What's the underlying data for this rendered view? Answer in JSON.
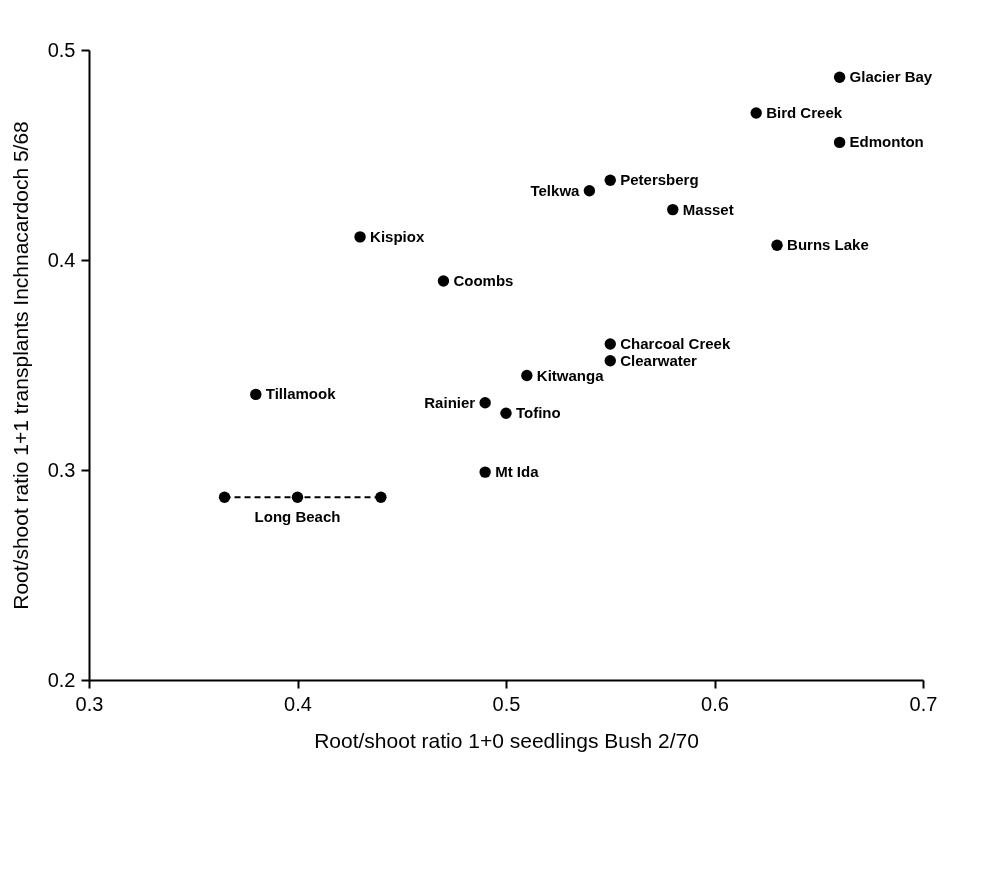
{
  "chart_data": {
    "type": "scatter",
    "xlabel": "Root/shoot ratio 1+0 seedlings Bush 2/70",
    "ylabel": "Root/shoot ratio 1+1 transplants Inchnacardoch 5/68",
    "xlim": [
      0.3,
      0.7
    ],
    "xticks": [
      0.3,
      0.4,
      0.5,
      0.6,
      0.7
    ],
    "ylim": [
      0.2,
      0.5
    ],
    "yticks": [
      0.2,
      0.3,
      0.4,
      0.5
    ],
    "grid": false,
    "marker": "circle",
    "series": [
      {
        "color": "#000000",
        "x": [
          0.66,
          0.62,
          0.66,
          0.55,
          0.54,
          0.58,
          0.63,
          0.43,
          0.47,
          0.55,
          0.55,
          0.51,
          0.38,
          0.49,
          0.5,
          0.49
        ],
        "values": [
          0.487,
          0.47,
          0.456,
          0.438,
          0.433,
          0.424,
          0.407,
          0.411,
          0.39,
          0.36,
          0.352,
          0.345,
          0.336,
          0.332,
          0.327,
          0.299
        ]
      },
      {
        "name": "Long Beach",
        "type": "line",
        "line_style": "dashed",
        "color": "#000000",
        "x": [
          0.365,
          0.4,
          0.44
        ],
        "values": [
          0.287,
          0.287,
          0.287
        ]
      }
    ],
    "annotations": [
      {
        "text": "Glacier Bay",
        "x": 0.66,
        "y": 0.487
      },
      {
        "text": "Bird Creek",
        "x": 0.62,
        "y": 0.47
      },
      {
        "text": "Edmonton",
        "x": 0.66,
        "y": 0.456
      },
      {
        "text": "Petersberg",
        "x": 0.55,
        "y": 0.438
      },
      {
        "text": "Telkwa",
        "x": 0.54,
        "y": 0.433
      },
      {
        "text": "Masset",
        "x": 0.58,
        "y": 0.424
      },
      {
        "text": "Burns Lake",
        "x": 0.63,
        "y": 0.407
      },
      {
        "text": "Kispiox",
        "x": 0.43,
        "y": 0.411
      },
      {
        "text": "Coombs",
        "x": 0.47,
        "y": 0.39
      },
      {
        "text": "Charcoal Creek",
        "x": 0.55,
        "y": 0.36
      },
      {
        "text": "Clearwater",
        "x": 0.55,
        "y": 0.352
      },
      {
        "text": "Kitwanga",
        "x": 0.51,
        "y": 0.345
      },
      {
        "text": "Tillamook",
        "x": 0.38,
        "y": 0.336
      },
      {
        "text": "Rainier",
        "x": 0.49,
        "y": 0.332
      },
      {
        "text": "Tofino",
        "x": 0.5,
        "y": 0.327
      },
      {
        "text": "Mt Ida",
        "x": 0.49,
        "y": 0.299
      }
    ]
  }
}
